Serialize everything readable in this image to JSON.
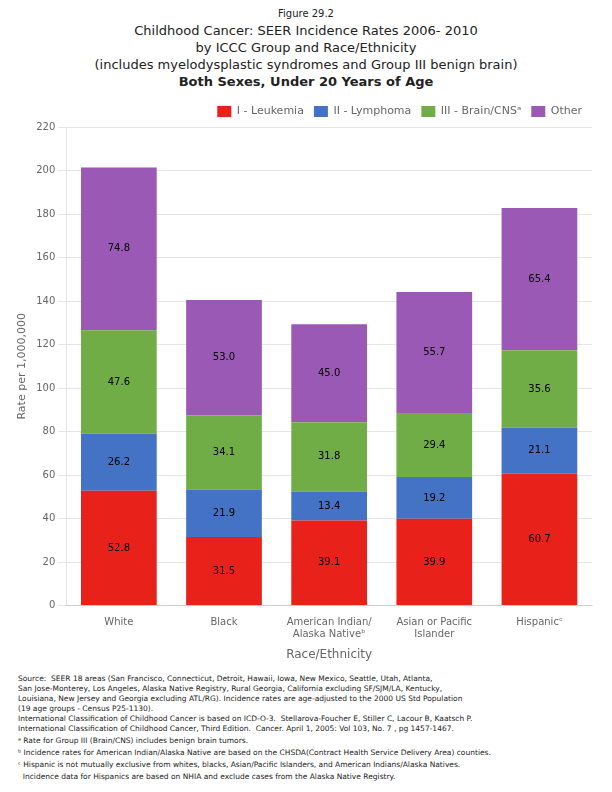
{
  "chart_data": {
    "type": "bar",
    "stacked": true,
    "subtitle": "Figure 29.2",
    "title": [
      "Childhood Cancer: SEER Incidence Rates 2006- 2010",
      "by ICCC Group and Race/Ethnicity",
      "(includes myelodysplastic syndromes and Group III benign brain)",
      "Both Sexes, Under 20 Years of Age"
    ],
    "xlabel": "Race/Ethnicity",
    "ylabel": "Rate per 1,000,000",
    "categories": [
      "White",
      "Black",
      "American Indian/\nAlaska Nativeᵇ",
      "Asian or Pacific\nIslander",
      "Hispanicᶜ"
    ],
    "series": [
      {
        "name": "I - Leukemia",
        "color": "#e8221b",
        "values": [
          52.8,
          31.5,
          39.1,
          39.9,
          60.7
        ]
      },
      {
        "name": "II - Lymphoma",
        "color": "#4472c4",
        "values": [
          26.2,
          21.9,
          13.4,
          19.2,
          21.1
        ]
      },
      {
        "name": "III - Brain/CNSᵃ",
        "color": "#70ad47",
        "values": [
          47.6,
          34.1,
          31.8,
          29.4,
          35.6
        ]
      },
      {
        "name": "Other",
        "color": "#9b59b6",
        "values": [
          74.8,
          53.0,
          45.0,
          55.7,
          65.4
        ],
        "value_labels": [
          "74.8",
          "53.0",
          "45.0",
          "55.7",
          "65.4"
        ]
      }
    ],
    "ylim": [
      0,
      220
    ],
    "yticks": [
      0,
      20,
      40,
      60,
      80,
      100,
      120,
      140,
      160,
      180,
      200,
      220
    ],
    "grid": true,
    "legend": "upper right",
    "data_labels": true,
    "annotations": [
      "Source:  SEER 18 areas (San Francisco, Connecticut, Detroit, Hawaii, Iowa, New Mexico, Seattle, Utah, Atlanta,\nSan Jose-Monterey, Los Angeles, Alaska Native Registry, Rural Georgia, California excluding SF/SJM/LA, Kentucky,\nLouisiana, New Jersey and Georgia excluding ATL/RG). Incidence rates are age-adjusted to the 2000 US Std Population\n(19 age groups - Census P25-1130).\nInternational Classification of Childhood Cancer is based on ICD-O-3.  Stellarova-Foucher E, Stiller C, Lacour B, Kaatsch P.\nInternational Classification of Childhood Cancer, Third Edition.  Cancer. April 1, 2005: Vol 103, No. 7 , pg 1457-1467.",
      "ᵃ Rate for Group III (Brain/CNS) includes benign brain tumors.",
      "ᵇ Incidence rates for American Indian/Alaska Native are based on the CHSDA(Contract Health Service Delivery Area) counties.",
      "ᶜ Hispanic is not mutually exclusive from whites, blacks, Asian/Pacific Islanders, and American Indians/Alaska Natives.",
      "  Incidence data for Hispanics are based on NHIA and exclude cases from the Alaska Native Registry."
    ]
  }
}
